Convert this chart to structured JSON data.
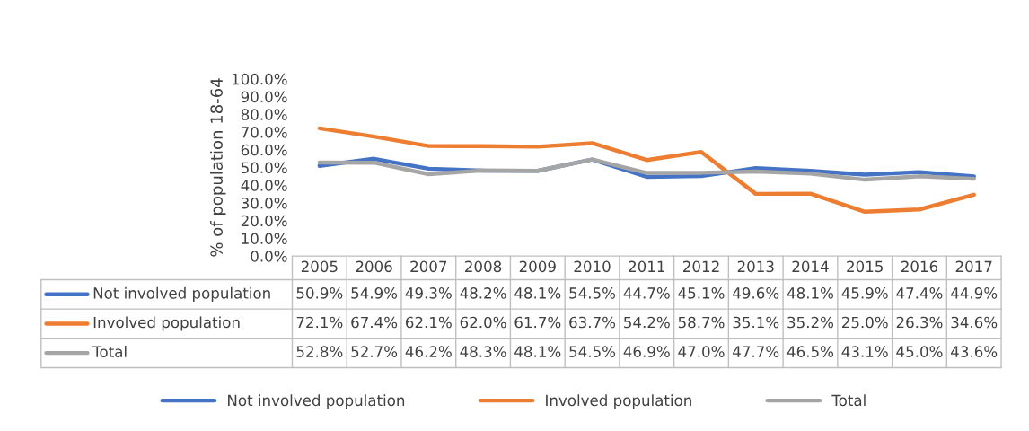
{
  "chart_data": {
    "type": "line",
    "ylabel": "% of population 18-64",
    "categories": [
      "2005",
      "2006",
      "2007",
      "2008",
      "2009",
      "2010",
      "2011",
      "2012",
      "2013",
      "2014",
      "2015",
      "2016",
      "2017"
    ],
    "series": [
      {
        "name": "Not involved population",
        "color": "#4472c4",
        "values": [
          50.9,
          54.9,
          49.3,
          48.2,
          48.1,
          54.5,
          44.7,
          45.1,
          49.6,
          48.1,
          45.9,
          47.4,
          44.9
        ],
        "value_labels": [
          "50.9%",
          "54.9%",
          "49.3%",
          "48.2%",
          "48.1%",
          "54.5%",
          "44.7%",
          "45.1%",
          "49.6%",
          "48.1%",
          "45.9%",
          "47.4%",
          "44.9%"
        ]
      },
      {
        "name": "Involved population",
        "color": "#ed7d31",
        "values": [
          72.1,
          67.4,
          62.1,
          62.0,
          61.7,
          63.7,
          54.2,
          58.7,
          35.1,
          35.2,
          25.0,
          26.3,
          34.6
        ],
        "value_labels": [
          "72.1%",
          "67.4%",
          "62.1%",
          "62.0%",
          "61.7%",
          "63.7%",
          "54.2%",
          "58.7%",
          "35.1%",
          "35.2%",
          "25.0%",
          "26.3%",
          "34.6%"
        ]
      },
      {
        "name": "Total",
        "color": "#a5a5a5",
        "values": [
          52.8,
          52.7,
          46.2,
          48.3,
          48.1,
          54.5,
          46.9,
          47.0,
          47.7,
          46.5,
          43.1,
          45.0,
          43.6
        ],
        "value_labels": [
          "52.8%",
          "52.7%",
          "46.2%",
          "48.3%",
          "48.1%",
          "54.5%",
          "46.9%",
          "47.0%",
          "47.7%",
          "46.5%",
          "43.1%",
          "45.0%",
          "43.6%"
        ]
      }
    ],
    "ylim": [
      0,
      100
    ],
    "yticks": [
      {
        "value": 0,
        "label": "0.0%"
      },
      {
        "value": 10,
        "label": "10.0%"
      },
      {
        "value": 20,
        "label": "20.0%"
      },
      {
        "value": 30,
        "label": "30.0%"
      },
      {
        "value": 40,
        "label": "40.0%"
      },
      {
        "value": 50,
        "label": "50.0%"
      },
      {
        "value": 60,
        "label": "60.0%"
      },
      {
        "value": 70,
        "label": "70.0%"
      },
      {
        "value": 80,
        "label": "80.0%"
      },
      {
        "value": 90,
        "label": "90.0%"
      },
      {
        "value": 100,
        "label": "100.0%"
      }
    ],
    "grid": false,
    "legend": "bottom",
    "marker": "none",
    "line_style": "solid"
  }
}
